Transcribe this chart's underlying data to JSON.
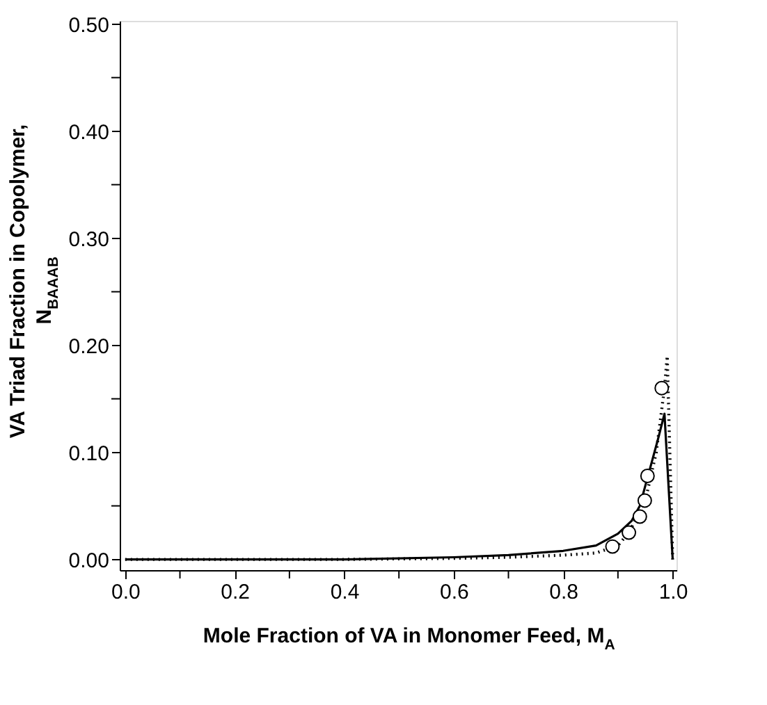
{
  "chart_data": {
    "type": "line",
    "xlabel": "Mole Fraction of VA in Monomer Feed, M$_{A}$",
    "ylabel": "VA Triad Fraction in Copolymer, N$_{BAAAB}$",
    "xlim": [
      -0.01,
      1.007
    ],
    "ylim": [
      -0.01,
      0.503
    ],
    "xticks": [
      {
        "value": 0.0,
        "label": "0.0"
      },
      {
        "value": 0.1,
        "label": null
      },
      0.2,
      {
        "value": 0.3,
        "label": null
      },
      0.4,
      {
        "value": 0.5,
        "label": null
      },
      0.6,
      {
        "value": 0.7,
        "label": null
      },
      0.8,
      {
        "value": 0.9,
        "label": null
      },
      {
        "value": 1.0,
        "label": "1.0"
      }
    ],
    "yticks": [
      {
        "value": 0.0,
        "label": "0.00"
      },
      {
        "value": 0.05,
        "label": null
      },
      {
        "value": 0.1,
        "label": "0.10"
      },
      {
        "value": 0.15,
        "label": null
      },
      {
        "value": 0.2,
        "label": "0.20"
      },
      {
        "value": 0.25,
        "label": null
      },
      {
        "value": 0.3,
        "label": "0.30"
      },
      {
        "value": 0.35,
        "label": null
      },
      {
        "value": 0.4,
        "label": "0.40"
      },
      {
        "value": 0.45,
        "label": null
      },
      {
        "value": 0.5,
        "label": "0.50"
      }
    ],
    "grid": false,
    "legend": false,
    "series": [
      {
        "type": "line",
        "line_style": "solid",
        "color": "#000000",
        "x": [
          0.0,
          0.2,
          0.4,
          0.6,
          0.7,
          0.8,
          0.86,
          0.9,
          0.925,
          0.94,
          0.956,
          0.973,
          0.985,
          1.0
        ],
        "values": [
          0.0,
          0.0,
          0.0,
          0.002,
          0.004,
          0.008,
          0.013,
          0.024,
          0.036,
          0.05,
          0.08,
          0.112,
          0.136,
          0.0
        ]
      },
      {
        "type": "line",
        "line_style": "dotted",
        "color": "#000000",
        "x": [
          0.0,
          0.2,
          0.4,
          0.6,
          0.7,
          0.8,
          0.86,
          0.9,
          0.92,
          0.95,
          0.97,
          0.985,
          0.99,
          1.0
        ],
        "values": [
          0.0,
          0.0,
          0.0,
          0.001,
          0.002,
          0.004,
          0.006,
          0.013,
          0.025,
          0.055,
          0.1,
          0.16,
          0.19,
          0.0
        ]
      },
      {
        "type": "scatter",
        "marker": "circle",
        "color": "#000000",
        "x": [
          0.89,
          0.92,
          0.94,
          0.949,
          0.954,
          0.98
        ],
        "values": [
          0.012,
          0.025,
          0.04,
          0.055,
          0.078,
          0.16
        ]
      }
    ]
  }
}
